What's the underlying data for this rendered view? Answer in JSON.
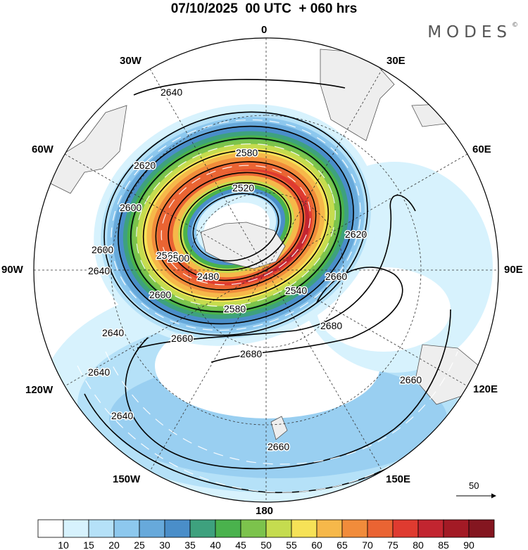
{
  "title": "07/10/2025  00 UTC  + 060 hrs",
  "brand": {
    "name": "MODES",
    "mark": "©"
  },
  "longitude_labels": {
    "lon_0": "0",
    "lon_30e": "30E",
    "lon_60e": "60E",
    "lon_90e": "90E",
    "lon_120e": "120E",
    "lon_150e": "150E",
    "lon_180": "180",
    "lon_150w": "150W",
    "lon_120w": "120W",
    "lon_90w": "90W",
    "lon_60w": "60W",
    "lon_30w": "30W"
  },
  "contour_labels": [
    "2640",
    "2620",
    "2600",
    "2580",
    "2560",
    "2540",
    "2520",
    "2500",
    "2480",
    "2660",
    "2680"
  ],
  "wind_reference": {
    "value": "50"
  },
  "colorbar": {
    "ticks": [
      "10",
      "15",
      "20",
      "25",
      "30",
      "35",
      "40",
      "45",
      "50",
      "55",
      "60",
      "65",
      "70",
      "75",
      "80",
      "85",
      "90"
    ],
    "colors": [
      "#ffffff",
      "#d7f2fd",
      "#b5e1f8",
      "#8dc8ee",
      "#67a9db",
      "#4a8ec9",
      "#3ea17e",
      "#4ab24d",
      "#7cc34c",
      "#c5dc4f",
      "#f6e257",
      "#f6b84a",
      "#f18c3b",
      "#ea6433",
      "#df3b30",
      "#c22530",
      "#a31a25",
      "#841620"
    ]
  },
  "speed_colors": {
    "c15": "#d7f2fd",
    "c20": "#b5e1f8",
    "c25": "#8dc8ee",
    "c30": "#67a9db",
    "c35": "#4a8ec9",
    "c40": "#3ea17e",
    "c45": "#4ab24d",
    "c50": "#7cc34c",
    "c55": "#c5dc4f",
    "c60": "#f6e257",
    "c65": "#f6b84a",
    "c70": "#f18c3b",
    "c75": "#ea6433",
    "c80": "#df3b30",
    "c85": "#c22530",
    "c90": "#a31a25"
  }
}
